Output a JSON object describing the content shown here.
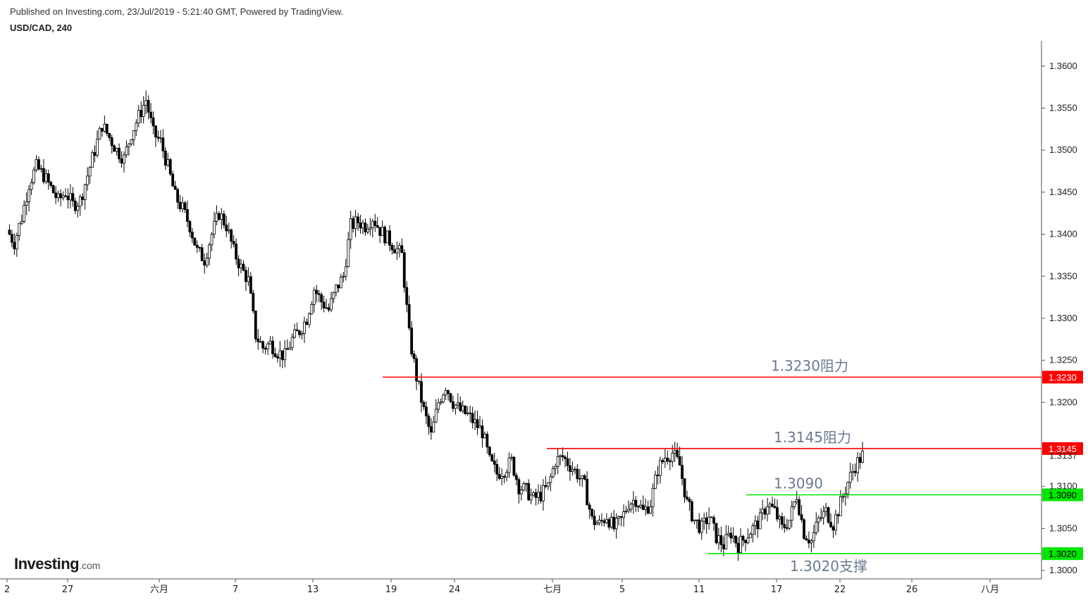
{
  "header": {
    "published": "Published on Investing.com, 23/Jul/2019 - 5:21:40 GMT, Powered by TradingView.",
    "symbol": "USD/CAD, 240"
  },
  "logo": {
    "brand": "Investing",
    "suffix": ".com"
  },
  "colors": {
    "resistance": "#ff0000",
    "support": "#00e600",
    "candle_up": "#ffffff",
    "candle_down": "#000000",
    "annotation": "#6b7a90"
  },
  "chart_data": {
    "type": "candlestick",
    "ylim": [
      1.299,
      1.363
    ],
    "yticks": [
      "1.3600",
      "1.3550",
      "1.3500",
      "1.3450",
      "1.3400",
      "1.3350",
      "1.3300",
      "1.3250",
      "1.3200",
      "1.3100",
      "1.3050",
      "1.3000"
    ],
    "xticks": [
      "2",
      "27",
      "六月",
      "7",
      "13",
      "19",
      "24",
      "七月",
      "5",
      "11",
      "17",
      "22",
      "26",
      "八月"
    ],
    "last_price": "1.3137",
    "levels": [
      {
        "value": 1.323,
        "label": "1.3230",
        "annotation": "1.3230阻力",
        "kind": "resistance"
      },
      {
        "value": 1.3145,
        "label": "1.3145",
        "annotation": "1.3145阻力",
        "kind": "resistance"
      },
      {
        "value": 1.309,
        "label": "1.3090",
        "annotation": "1.3090",
        "kind": "support"
      },
      {
        "value": 1.302,
        "label": "1.3020",
        "annotation": "1.3020支撑",
        "kind": "support"
      }
    ],
    "path": [
      1.3405,
      1.339,
      1.342,
      1.346,
      1.348,
      1.347,
      1.3455,
      1.344,
      1.345,
      1.3435,
      1.344,
      1.347,
      1.35,
      1.353,
      1.3515,
      1.35,
      1.349,
      1.352,
      1.354,
      1.356,
      1.352,
      1.351,
      1.348,
      1.3445,
      1.343,
      1.341,
      1.338,
      1.337,
      1.34,
      1.3425,
      1.341,
      1.338,
      1.336,
      1.3345,
      1.328,
      1.3265,
      1.327,
      1.326,
      1.3255,
      1.3275,
      1.3285,
      1.33,
      1.3335,
      1.332,
      1.331,
      1.3335,
      1.335,
      1.341,
      1.3415,
      1.341,
      1.342,
      1.3405,
      1.3395,
      1.3385,
      1.3375,
      1.328,
      1.323,
      1.319,
      1.316,
      1.32,
      1.322,
      1.32,
      1.319,
      1.3185,
      1.3175,
      1.3165,
      1.313,
      1.3115,
      1.312,
      1.313,
      1.31,
      1.3095,
      1.3085,
      1.309,
      1.31,
      1.313,
      1.3135,
      1.3125,
      1.3115,
      1.31,
      1.306,
      1.3055,
      1.3065,
      1.305,
      1.306,
      1.308,
      1.3085,
      1.307,
      1.308,
      1.312,
      1.3135,
      1.314,
      1.3125,
      1.308,
      1.306,
      1.305,
      1.3065,
      1.304,
      1.303,
      1.3045,
      1.303,
      1.304,
      1.305,
      1.306,
      1.308,
      1.307,
      1.305,
      1.306,
      1.309,
      1.3045,
      1.3035,
      1.306,
      1.307,
      1.3055,
      1.308,
      1.3105,
      1.3125,
      1.3137
    ]
  }
}
